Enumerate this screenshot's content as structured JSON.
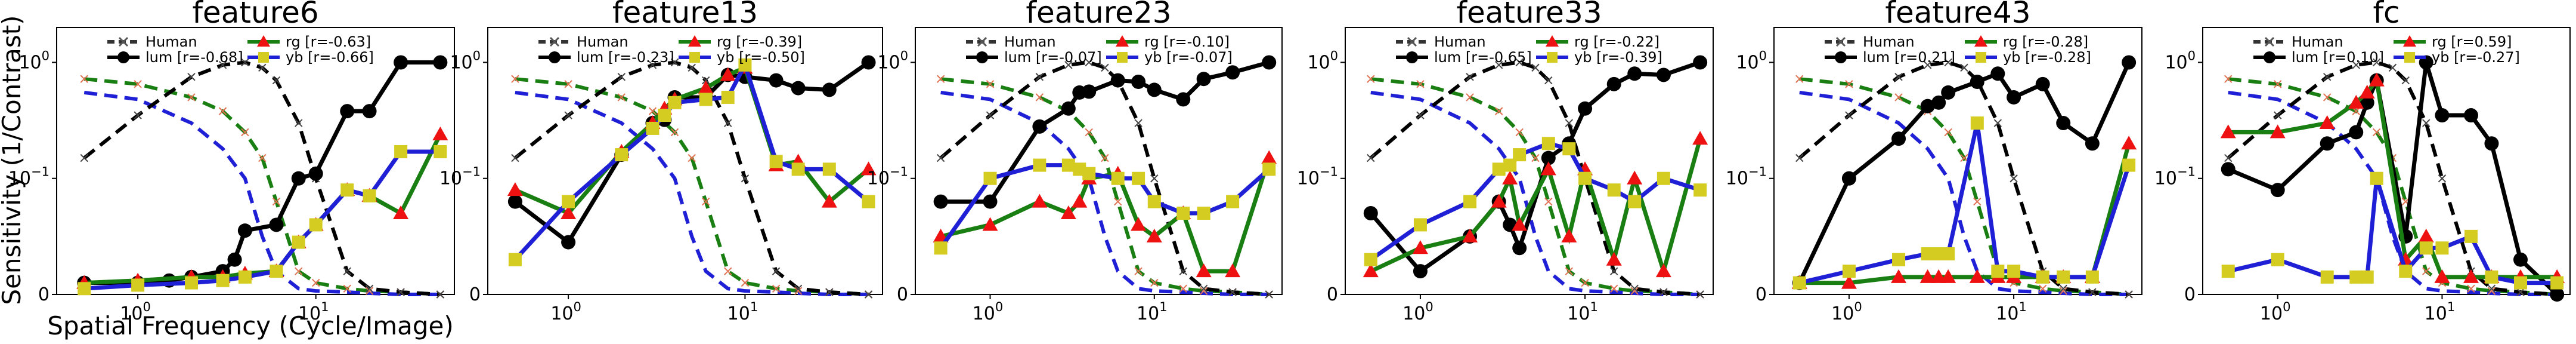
{
  "figure": {
    "ylabel": "Sensitivity (1/Contrast)",
    "xlabel": "Spatial Frequency (Cycle/Image)"
  },
  "chart_data": [
    {
      "type": "line",
      "title": "feature6",
      "xscale": "log",
      "yscale": "symlog",
      "xlim": [
        0.35,
        60
      ],
      "ylim": [
        0,
        2
      ],
      "xticks": [
        "10^0",
        "10^1"
      ],
      "yticks": [
        "0",
        "10^-1",
        "10^0"
      ],
      "legend": {
        "placement": "top",
        "entries": [
          {
            "name": "Human",
            "r": ""
          },
          {
            "name": "lum",
            "r": "[r=-0.68]"
          },
          {
            "name": "rg",
            "r": "[r=-0.63]"
          },
          {
            "name": "yb",
            "r": "[r=-0.66]"
          }
        ]
      },
      "series": [
        {
          "name": "lum",
          "x": [
            0.5,
            1,
            1.5,
            2,
            3,
            3.5,
            4,
            6,
            8,
            10,
            15,
            20,
            30,
            50
          ],
          "y": [
            0.01,
            0.01,
            0.012,
            0.015,
            0.02,
            0.03,
            0.055,
            0.06,
            0.1,
            0.11,
            0.38,
            0.38,
            1.0,
            1.0
          ]
        },
        {
          "name": "rg",
          "x": [
            0.5,
            1,
            2,
            3,
            4,
            6,
            8,
            10,
            15,
            20,
            30,
            50
          ],
          "y": [
            0.01,
            0.012,
            0.015,
            0.015,
            0.018,
            0.02,
            0.045,
            0.06,
            0.09,
            0.085,
            0.07,
            0.24
          ]
        },
        {
          "name": "yb",
          "x": [
            0.5,
            1,
            2,
            3,
            4,
            6,
            8,
            10,
            15,
            20,
            30,
            50
          ],
          "y": [
            0.005,
            0.008,
            0.01,
            0.012,
            0.015,
            0.02,
            0.045,
            0.06,
            0.09,
            0.085,
            0.17,
            0.17
          ]
        }
      ]
    },
    {
      "type": "line",
      "title": "feature13",
      "xscale": "log",
      "yscale": "symlog",
      "xlim": [
        0.35,
        60
      ],
      "ylim": [
        0,
        2
      ],
      "xticks": [
        "10^0",
        "10^1"
      ],
      "yticks": [
        "0",
        "10^-1",
        "10^0"
      ],
      "legend": {
        "placement": "top",
        "entries": [
          {
            "name": "Human",
            "r": ""
          },
          {
            "name": "lum",
            "r": "[r=-0.23]"
          },
          {
            "name": "rg",
            "r": "[r=-0.39]"
          },
          {
            "name": "yb",
            "r": "[r=-0.50]"
          }
        ]
      },
      "series": [
        {
          "name": "lum",
          "x": [
            0.5,
            1,
            2,
            3,
            3.5,
            4,
            6,
            8,
            10,
            15,
            20,
            30,
            50
          ],
          "y": [
            0.08,
            0.045,
            0.16,
            0.3,
            0.32,
            0.5,
            0.5,
            0.78,
            0.75,
            0.7,
            0.6,
            0.58,
            1.0
          ]
        },
        {
          "name": "rg",
          "x": [
            0.5,
            1,
            2,
            3,
            3.5,
            4,
            6,
            8,
            10,
            15,
            20,
            30,
            50
          ],
          "y": [
            0.09,
            0.07,
            0.17,
            0.3,
            0.4,
            0.48,
            0.6,
            0.78,
            0.9,
            0.13,
            0.14,
            0.08,
            0.12
          ]
        },
        {
          "name": "yb",
          "x": [
            0.5,
            1,
            2,
            3,
            3.5,
            4,
            6,
            8,
            10,
            15,
            20,
            30,
            50
          ],
          "y": [
            0.03,
            0.08,
            0.16,
            0.27,
            0.35,
            0.45,
            0.48,
            0.5,
            0.95,
            0.14,
            0.12,
            0.12,
            0.08
          ]
        }
      ]
    },
    {
      "type": "line",
      "title": "feature23",
      "xscale": "log",
      "yscale": "symlog",
      "xlim": [
        0.35,
        60
      ],
      "ylim": [
        0,
        2
      ],
      "xticks": [
        "10^0",
        "10^1"
      ],
      "yticks": [
        "0",
        "10^-1",
        "10^0"
      ],
      "legend": {
        "placement": "top",
        "entries": [
          {
            "name": "Human",
            "r": ""
          },
          {
            "name": "lum",
            "r": "[r=-0.07]"
          },
          {
            "name": "rg",
            "r": "[r=-0.10]"
          },
          {
            "name": "yb",
            "r": "[r=-0.07]"
          }
        ]
      },
      "series": [
        {
          "name": "lum",
          "x": [
            0.5,
            1,
            2,
            3,
            3.5,
            4,
            6,
            8,
            10,
            15,
            20,
            30,
            50
          ],
          "y": [
            0.08,
            0.08,
            0.28,
            0.4,
            0.55,
            0.56,
            0.7,
            0.68,
            0.58,
            0.48,
            0.72,
            0.82,
            1.0
          ]
        },
        {
          "name": "rg",
          "x": [
            0.5,
            1,
            2,
            3,
            3.5,
            4,
            6,
            8,
            10,
            15,
            20,
            30,
            50
          ],
          "y": [
            0.05,
            0.06,
            0.08,
            0.07,
            0.08,
            0.1,
            0.11,
            0.06,
            0.05,
            0.07,
            0.02,
            0.02,
            0.15
          ]
        },
        {
          "name": "yb",
          "x": [
            0.5,
            1,
            2,
            3,
            3.5,
            4,
            6,
            8,
            10,
            15,
            20,
            30,
            50
          ],
          "y": [
            0.04,
            0.1,
            0.13,
            0.13,
            0.12,
            0.11,
            0.1,
            0.1,
            0.08,
            0.07,
            0.07,
            0.08,
            0.12
          ]
        }
      ]
    },
    {
      "type": "line",
      "title": "feature33",
      "xscale": "log",
      "yscale": "symlog",
      "xlim": [
        0.35,
        60
      ],
      "ylim": [
        0,
        2
      ],
      "xticks": [
        "10^0",
        "10^1"
      ],
      "yticks": [
        "0",
        "10^-1",
        "10^0"
      ],
      "legend": {
        "placement": "top",
        "entries": [
          {
            "name": "Human",
            "r": ""
          },
          {
            "name": "lum",
            "r": "[r=-0.65]"
          },
          {
            "name": "rg",
            "r": "[r=-0.22]"
          },
          {
            "name": "yb",
            "r": "[r=-0.39]"
          }
        ]
      },
      "series": [
        {
          "name": "lum",
          "x": [
            0.5,
            1,
            2,
            3,
            3.5,
            4,
            6,
            8,
            10,
            15,
            20,
            30,
            50
          ],
          "y": [
            0.07,
            0.02,
            0.05,
            0.08,
            0.06,
            0.04,
            0.15,
            0.2,
            0.4,
            0.65,
            0.8,
            0.78,
            1.0
          ]
        },
        {
          "name": "rg",
          "x": [
            0.5,
            1,
            2,
            3,
            3.5,
            4,
            6,
            8,
            10,
            15,
            20,
            30,
            50
          ],
          "y": [
            0.02,
            0.04,
            0.05,
            0.08,
            0.1,
            0.06,
            0.12,
            0.05,
            0.12,
            0.03,
            0.1,
            0.02,
            0.22
          ]
        },
        {
          "name": "yb",
          "x": [
            0.5,
            1,
            2,
            3,
            3.5,
            4,
            6,
            8,
            10,
            15,
            20,
            30,
            50
          ],
          "y": [
            0.03,
            0.06,
            0.08,
            0.12,
            0.13,
            0.16,
            0.2,
            0.18,
            0.1,
            0.09,
            0.08,
            0.1,
            0.09
          ]
        }
      ]
    },
    {
      "type": "line",
      "title": "feature43",
      "xscale": "log",
      "yscale": "symlog",
      "xlim": [
        0.35,
        60
      ],
      "ylim": [
        0,
        2
      ],
      "xticks": [
        "10^0",
        "10^1"
      ],
      "yticks": [
        "0",
        "10^-1",
        "10^0"
      ],
      "legend": {
        "placement": "top",
        "entries": [
          {
            "name": "Human",
            "r": ""
          },
          {
            "name": "lum",
            "r": "[r=0.21]"
          },
          {
            "name": "rg",
            "r": "[r=-0.28]"
          },
          {
            "name": "yb",
            "r": "[r=-0.28]"
          }
        ]
      },
      "series": [
        {
          "name": "lum",
          "x": [
            0.5,
            1,
            2,
            3,
            3.5,
            4,
            6,
            8,
            10,
            15,
            20,
            30,
            50
          ],
          "y": [
            0.01,
            0.1,
            0.22,
            0.42,
            0.45,
            0.55,
            0.68,
            0.8,
            0.5,
            0.65,
            0.3,
            0.2,
            1.0
          ]
        },
        {
          "name": "rg",
          "x": [
            0.5,
            1,
            2,
            3,
            3.5,
            4,
            6,
            8,
            10,
            15,
            20,
            30,
            50
          ],
          "y": [
            0.01,
            0.01,
            0.015,
            0.015,
            0.015,
            0.015,
            0.015,
            0.015,
            0.015,
            0.015,
            0.015,
            0.015,
            0.2
          ]
        },
        {
          "name": "yb",
          "x": [
            0.5,
            1,
            2,
            3,
            3.5,
            4,
            6,
            8,
            10,
            15,
            20,
            30,
            50
          ],
          "y": [
            0.01,
            0.02,
            0.03,
            0.035,
            0.035,
            0.035,
            0.3,
            0.02,
            0.02,
            0.015,
            0.015,
            0.015,
            0.13
          ]
        }
      ]
    },
    {
      "type": "line",
      "title": "fc",
      "xscale": "log",
      "yscale": "symlog",
      "xlim": [
        0.35,
        60
      ],
      "ylim": [
        0,
        2
      ],
      "xticks": [
        "10^0",
        "10^1"
      ],
      "yticks": [
        "0",
        "10^-1",
        "10^0"
      ],
      "legend": {
        "placement": "top",
        "entries": [
          {
            "name": "Human",
            "r": ""
          },
          {
            "name": "lum",
            "r": "[r=0.10]"
          },
          {
            "name": "rg",
            "r": "[r=0.59]"
          },
          {
            "name": "yb",
            "r": "[r=-0.27]"
          }
        ]
      },
      "series": [
        {
          "name": "lum",
          "x": [
            0.5,
            1,
            2,
            3,
            3.5,
            4,
            6,
            8,
            10,
            15,
            20,
            30,
            50
          ],
          "y": [
            0.12,
            0.09,
            0.2,
            0.25,
            0.45,
            0.7,
            0.05,
            1.0,
            0.35,
            0.35,
            0.2,
            0.03,
            0.0
          ]
        },
        {
          "name": "rg",
          "x": [
            0.5,
            1,
            2,
            3,
            3.5,
            4,
            6,
            8,
            10,
            15,
            20,
            30,
            50
          ],
          "y": [
            0.25,
            0.25,
            0.3,
            0.45,
            0.55,
            0.7,
            0.03,
            0.05,
            0.015,
            0.015,
            0.015,
            0.015,
            0.015
          ]
        },
        {
          "name": "yb",
          "x": [
            0.5,
            1,
            2,
            3,
            3.5,
            4,
            6,
            8,
            10,
            15,
            20,
            30,
            50
          ],
          "y": [
            0.02,
            0.03,
            0.015,
            0.015,
            0.015,
            0.1,
            0.02,
            0.04,
            0.04,
            0.05,
            0.015,
            0.01,
            0.01
          ]
        }
      ]
    }
  ],
  "human_reference": {
    "x": [
      0.5,
      1,
      2,
      3,
      4,
      5,
      6,
      8,
      10,
      15,
      20,
      30,
      50
    ],
    "lum": [
      0.15,
      0.35,
      0.75,
      0.95,
      1.0,
      0.9,
      0.7,
      0.3,
      0.1,
      0.02,
      0.005,
      0.002,
      0.0
    ],
    "rg": [
      0.72,
      0.65,
      0.5,
      0.38,
      0.25,
      0.15,
      0.08,
      0.02,
      0.01,
      0.005,
      0.003,
      0.002,
      0.0
    ],
    "yb": [
      0.55,
      0.48,
      0.3,
      0.18,
      0.1,
      0.05,
      0.02,
      0.005,
      0.003,
      0.002,
      0.001,
      0.0,
      0.0
    ]
  },
  "colors": {
    "lum": "#000000",
    "rg": "#1a7f12",
    "yb": "#1f1fd6",
    "human": "#333333",
    "rg_marker": "#ee1111",
    "yb_marker": "#d4cc20",
    "human_marker": "#e07050"
  }
}
